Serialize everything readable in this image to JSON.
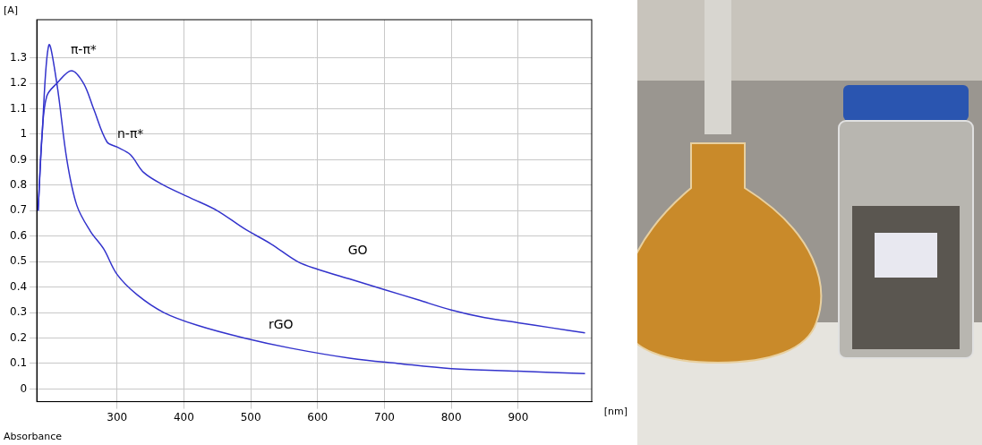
{
  "chart_data": {
    "type": "line",
    "y_label": "[A]",
    "x_label": "[nm]",
    "footer": "Absorbance",
    "xlim": [
      180,
      1010
    ],
    "xticks": [
      300,
      400,
      500,
      600,
      700,
      800,
      900
    ],
    "ylim": [
      -0.05,
      1.45
    ],
    "yticks": [
      0,
      0.1,
      0.2,
      0.3,
      0.4,
      0.5,
      0.6,
      0.7,
      0.8,
      0.9,
      1,
      1.1,
      1.2,
      1.3
    ],
    "grid": true,
    "series": [
      {
        "name": "GO",
        "color": "#3333cc",
        "x": [
          182,
          188,
          195,
          210,
          232,
          250,
          265,
          285,
          300,
          320,
          340,
          370,
          410,
          450,
          490,
          530,
          570,
          600,
          650,
          700,
          750,
          800,
          850,
          900,
          950,
          1000
        ],
        "values": [
          0.7,
          1.0,
          1.15,
          1.2,
          1.25,
          1.2,
          1.1,
          0.97,
          0.95,
          0.92,
          0.85,
          0.8,
          0.75,
          0.7,
          0.63,
          0.57,
          0.5,
          0.47,
          0.43,
          0.39,
          0.35,
          0.31,
          0.28,
          0.26,
          0.24,
          0.22
        ]
      },
      {
        "name": "rGO",
        "color": "#3333cc",
        "x": [
          182,
          188,
          198,
          210,
          225,
          240,
          260,
          280,
          300,
          330,
          370,
          420,
          490,
          560,
          650,
          720,
          800,
          900,
          1000
        ],
        "values": [
          0.7,
          1.0,
          1.35,
          1.2,
          0.9,
          0.72,
          0.62,
          0.55,
          0.45,
          0.37,
          0.3,
          0.25,
          0.2,
          0.16,
          0.12,
          0.1,
          0.08,
          0.07,
          0.06
        ]
      }
    ],
    "annotations": [
      {
        "text": "π-π*",
        "x": 250,
        "y": 1.33
      },
      {
        "text": "n-π*",
        "x": 320,
        "y": 1.0
      },
      {
        "text": "GO",
        "x": 660,
        "y": 0.54
      },
      {
        "text": "rGO",
        "x": 545,
        "y": 0.25
      }
    ]
  }
}
